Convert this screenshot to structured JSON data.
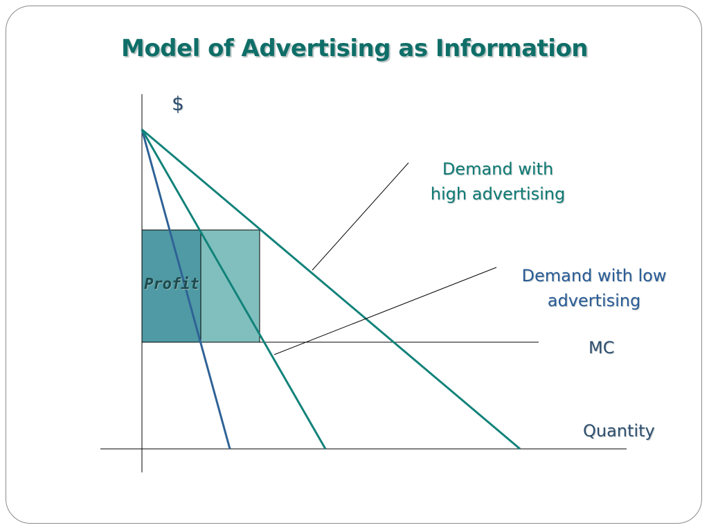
{
  "slide": {
    "title": "Model of Advertising as Information"
  },
  "diagram": {
    "y_axis_label": "$",
    "x_axis_label": "Quantity",
    "profit_label": "Profit",
    "curves": {
      "demand_high": "Demand with high advertising",
      "demand_low": "Demand with low advertising",
      "mc": "MC"
    },
    "labels": {
      "demand_high_line1": "Demand with",
      "demand_high_line2": "high advertising",
      "demand_low_line1": "Demand with low",
      "demand_low_line2": "advertising",
      "mc": "MC"
    },
    "colors": {
      "title": "#0f6e68",
      "demand_high": "#11827a",
      "demand_low": "#2f6296",
      "profit_dark": "#4f9aa4",
      "profit_light": "#80bfbd",
      "axes": "#000000"
    }
  }
}
